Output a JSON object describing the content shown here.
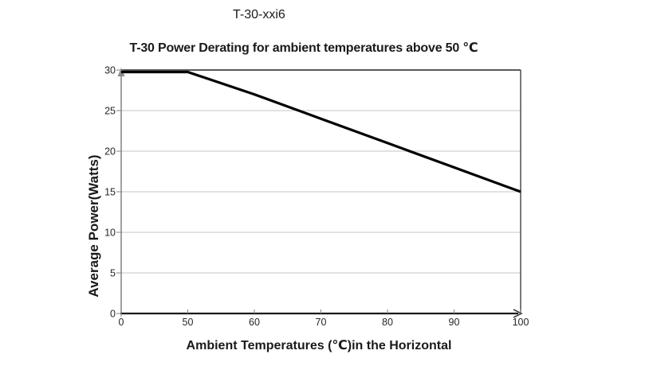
{
  "page": {
    "header": "T-30-xxi6"
  },
  "colors": {
    "background": "#ffffff",
    "series_line": "#000000",
    "gridline": "#c6c6c6",
    "gridline_top": "#595959",
    "y_axis": "#808080",
    "y_axis_arrow": "#8c8c8c",
    "x_axis": "#1a1a1a",
    "x_axis_arrow": "#404040",
    "plot_border_right": "#404040",
    "tick_label": "#262626"
  },
  "chart_data": {
    "type": "line",
    "title": "T-30 Power Derating for ambient temperatures above 50 ℃",
    "xlabel": "Ambient Temperatures (℃)in the Horizontal",
    "ylabel": "Average Power(Watts)",
    "categories": [
      "0",
      "50",
      "60",
      "70",
      "80",
      "90",
      "100"
    ],
    "x_values": [
      0,
      50,
      60,
      70,
      80,
      90,
      100
    ],
    "values": [
      30,
      30,
      27,
      24,
      21,
      18,
      15
    ],
    "yticks": [
      0,
      5,
      10,
      15,
      20,
      25,
      30
    ],
    "ylim": [
      0,
      30
    ],
    "x_axis_type": "categorical-even-spacing",
    "grid": "horizontal",
    "legend": "none"
  }
}
